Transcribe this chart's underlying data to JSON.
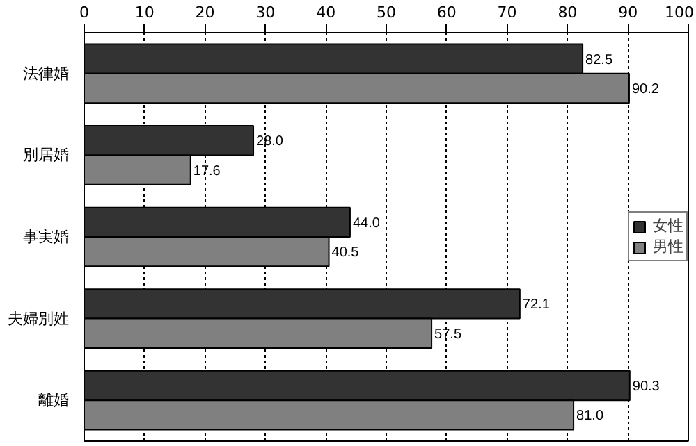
{
  "chart_data": {
    "type": "bar",
    "orientation": "horizontal",
    "categories": [
      "法律婚",
      "別居婚",
      "事実婚",
      "夫婦別姓",
      "離婚"
    ],
    "series": [
      {
        "name": "女性",
        "color": "#333333",
        "values": [
          82.5,
          28.0,
          44.0,
          72.1,
          90.3
        ],
        "value_labels": [
          "82.5",
          "28.0",
          "44.0",
          "72.1",
          "90.3"
        ]
      },
      {
        "name": "男性",
        "color": "#808080",
        "values": [
          90.2,
          17.6,
          40.5,
          57.5,
          81.0
        ],
        "value_labels": [
          "90.2",
          "17.6",
          "40.5",
          "57.5",
          "81.0"
        ]
      }
    ],
    "xlim": [
      0,
      100
    ],
    "xticks": [
      0,
      10,
      20,
      30,
      40,
      50,
      60,
      70,
      80,
      90,
      100
    ],
    "grid": "x",
    "legend": "right"
  }
}
